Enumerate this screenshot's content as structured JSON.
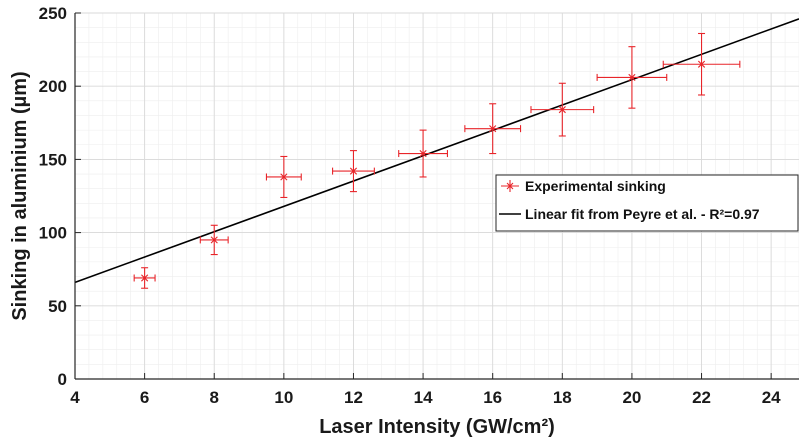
{
  "chart_data": {
    "type": "scatter",
    "xlabel": "Laser Intensity (GW/cm²)",
    "ylabel": "Sinking in aluminium (µm)",
    "xlim": [
      4,
      24.8
    ],
    "ylim": [
      0,
      250
    ],
    "xticks": [
      "4",
      "6",
      "8",
      "10",
      "12",
      "14",
      "16",
      "18",
      "20",
      "22",
      "24"
    ],
    "yticks": [
      "0",
      "50",
      "100",
      "150",
      "200",
      "250"
    ],
    "grid": "major and minor",
    "legend_position": "right",
    "series": [
      {
        "name": "Experimental sinking",
        "color": "#e8252a",
        "marker": "x",
        "points": [
          {
            "x": 6,
            "y": 69,
            "xerr": 0.3,
            "yerr": 7
          },
          {
            "x": 8,
            "y": 95,
            "xerr": 0.4,
            "yerr": 10
          },
          {
            "x": 10,
            "y": 138,
            "xerr": 0.5,
            "yerr": 14
          },
          {
            "x": 12,
            "y": 142,
            "xerr": 0.6,
            "yerr": 14
          },
          {
            "x": 14,
            "y": 154,
            "xerr": 0.7,
            "yerr": 16
          },
          {
            "x": 16,
            "y": 171,
            "xerr": 0.8,
            "yerr": 17
          },
          {
            "x": 18,
            "y": 184,
            "xerr": 0.9,
            "yerr": 18
          },
          {
            "x": 20,
            "y": 206,
            "xerr": 1.0,
            "yerr": 21
          },
          {
            "x": 22,
            "y": 215,
            "xerr": 1.1,
            "yerr": 21
          }
        ]
      },
      {
        "name": "Linear fit from Peyre et al. - R²=0.97",
        "color": "#000000",
        "type": "line",
        "x": [
          4,
          24.8
        ],
        "y": [
          66,
          246
        ]
      }
    ]
  }
}
